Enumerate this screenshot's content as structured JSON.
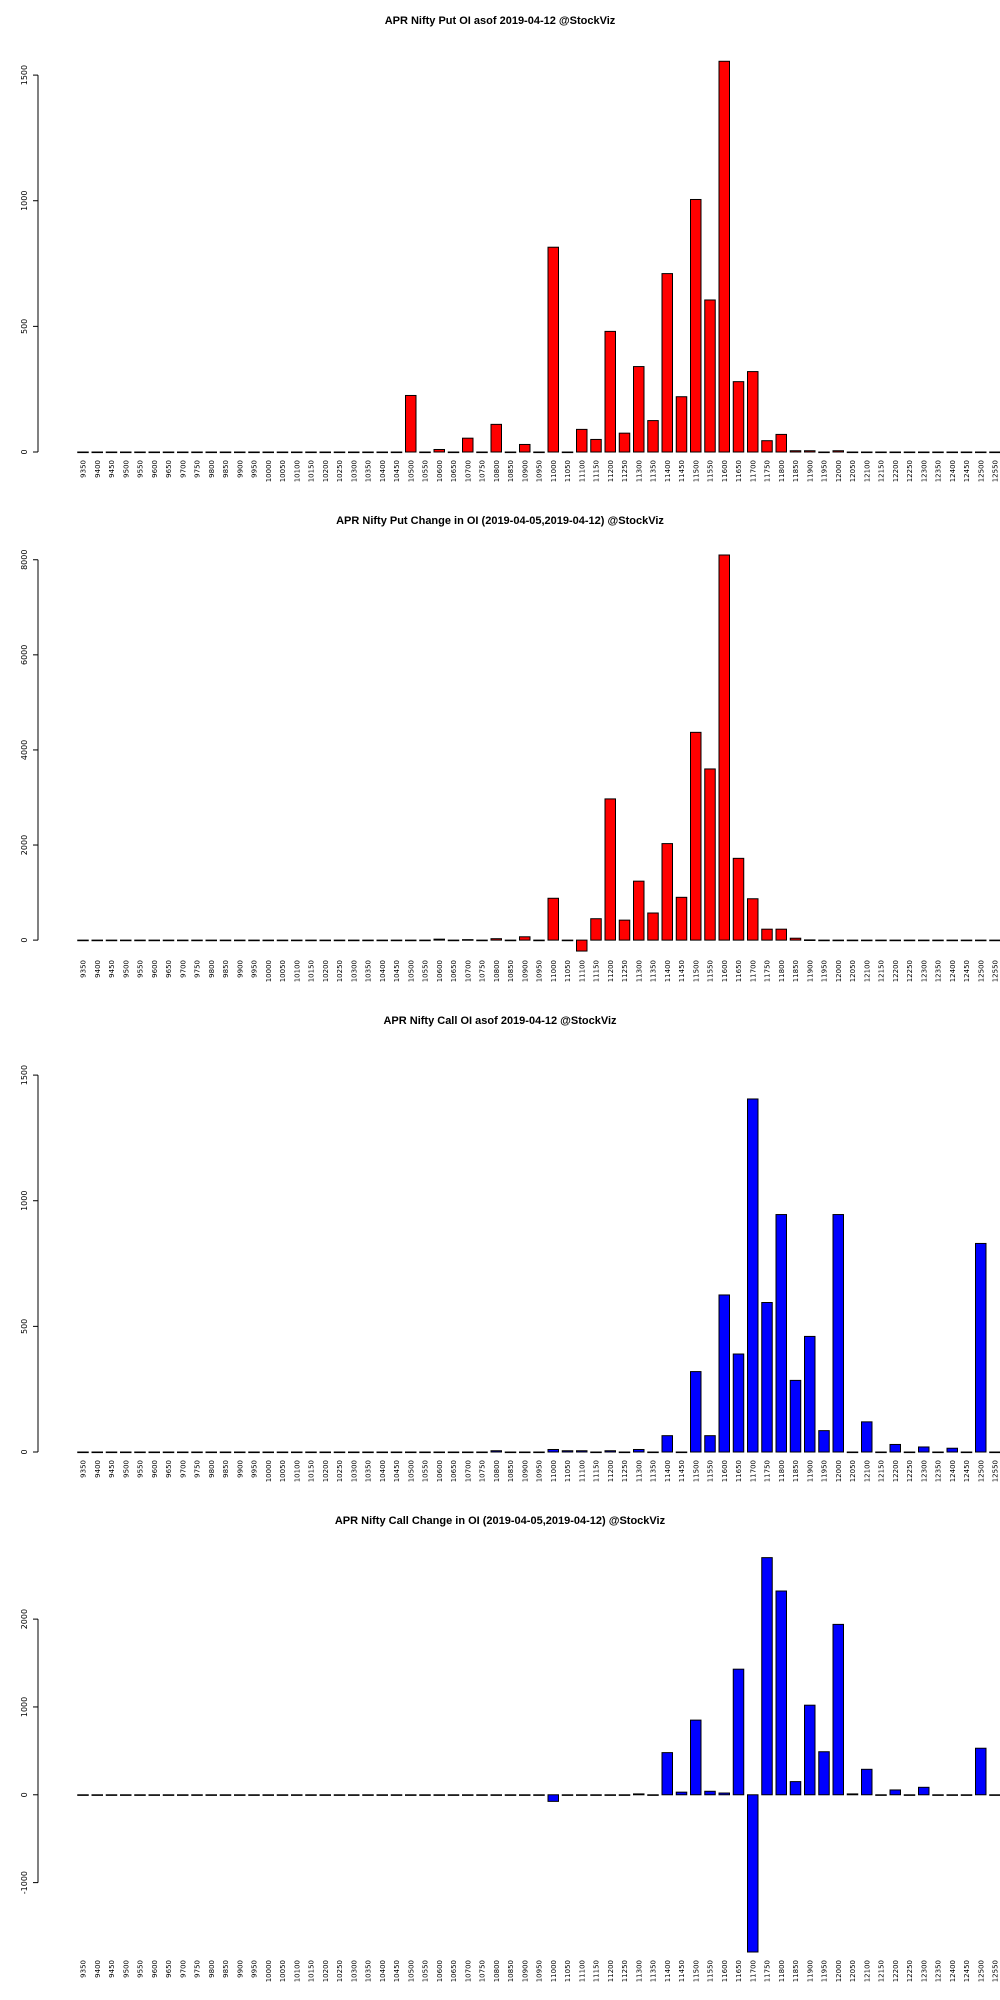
{
  "strikes": [
    "9350",
    "9400",
    "9450",
    "9500",
    "9550",
    "9600",
    "9650",
    "9700",
    "9750",
    "9800",
    "9850",
    "9900",
    "9950",
    "10000",
    "10050",
    "10100",
    "10150",
    "10200",
    "10250",
    "10300",
    "10350",
    "10400",
    "10450",
    "10500",
    "10550",
    "10600",
    "10650",
    "10700",
    "10750",
    "10800",
    "10850",
    "10900",
    "10950",
    "11000",
    "11050",
    "11100",
    "11150",
    "11200",
    "11250",
    "11300",
    "11350",
    "11400",
    "11450",
    "11500",
    "11550",
    "11600",
    "11650",
    "11700",
    "11750",
    "11800",
    "11850",
    "11900",
    "11950",
    "12000",
    "12050",
    "12100",
    "12150",
    "12200",
    "12250",
    "12300",
    "12350",
    "12400",
    "12450",
    "12500",
    "12550"
  ],
  "chart_data": [
    {
      "type": "bar",
      "title": "APR Nifty Put OI asof 2019-04-12 @StockViz",
      "color": "#ff0000",
      "ylim": [
        0,
        1580
      ],
      "yticks": [
        0,
        500,
        1000,
        1500
      ],
      "ytick_labels": [
        "0",
        "500",
        "1000",
        "1500"
      ],
      "values": [
        0,
        0,
        0,
        0,
        0,
        0,
        0,
        0,
        0,
        0,
        0,
        0,
        0,
        0,
        0,
        0,
        0,
        0,
        0,
        0,
        0,
        0,
        0,
        225,
        0,
        10,
        0,
        55,
        0,
        110,
        0,
        30,
        0,
        815,
        0,
        90,
        50,
        480,
        75,
        340,
        125,
        710,
        220,
        1005,
        605,
        1555,
        280,
        320,
        45,
        70,
        5,
        5,
        0,
        5,
        0,
        0,
        0,
        0,
        0,
        0,
        0,
        0,
        0,
        0,
        0
      ]
    },
    {
      "type": "bar",
      "title": "APR Nifty Put Change in OI (2019-04-05,2019-04-12) @StockViz",
      "color": "#ff0000",
      "ylim": [
        -250,
        8100
      ],
      "yticks": [
        0,
        2000,
        4000,
        6000,
        8000
      ],
      "ytick_labels": [
        "0",
        "2000",
        "4000",
        "6000",
        "8000"
      ],
      "values": [
        0,
        0,
        0,
        0,
        0,
        0,
        0,
        0,
        0,
        0,
        0,
        0,
        0,
        0,
        0,
        0,
        0,
        0,
        0,
        0,
        0,
        0,
        0,
        0,
        0,
        20,
        0,
        10,
        0,
        30,
        0,
        70,
        0,
        880,
        0,
        -230,
        450,
        2970,
        420,
        1240,
        570,
        2030,
        900,
        4370,
        3600,
        8100,
        1720,
        870,
        230,
        230,
        40,
        5,
        0,
        0,
        0,
        0,
        0,
        0,
        0,
        0,
        0,
        0,
        0,
        0,
        0
      ]
    },
    {
      "type": "bar",
      "title": "APR Nifty Call OI asof 2019-04-12 @StockViz",
      "color": "#0000ff",
      "ylim": [
        0,
        1580
      ],
      "yticks": [
        0,
        500,
        1000,
        1500
      ],
      "ytick_labels": [
        "0",
        "500",
        "1000",
        "1500"
      ],
      "values": [
        0,
        0,
        0,
        0,
        0,
        0,
        0,
        0,
        0,
        0,
        0,
        0,
        0,
        0,
        0,
        0,
        0,
        0,
        0,
        0,
        0,
        0,
        0,
        0,
        0,
        0,
        0,
        0,
        0,
        5,
        0,
        0,
        0,
        10,
        5,
        5,
        0,
        5,
        0,
        10,
        0,
        65,
        0,
        320,
        65,
        625,
        390,
        1405,
        595,
        945,
        285,
        460,
        85,
        945,
        0,
        120,
        0,
        30,
        0,
        20,
        0,
        15,
        0,
        830,
        0
      ]
    },
    {
      "type": "bar",
      "title": "APR Nifty Call Change in OI (2019-04-05,2019-04-12) @StockViz",
      "color": "#0000ff",
      "ylim": [
        -1790,
        2730
      ],
      "yticks": [
        -1000,
        0,
        1000,
        2000
      ],
      "ytick_labels": [
        "-1000",
        "0",
        "1000",
        "2000"
      ],
      "values": [
        0,
        0,
        0,
        0,
        0,
        0,
        0,
        0,
        0,
        0,
        0,
        0,
        0,
        0,
        0,
        0,
        0,
        0,
        0,
        0,
        0,
        0,
        0,
        0,
        0,
        0,
        0,
        0,
        0,
        0,
        0,
        0,
        0,
        -75,
        0,
        0,
        0,
        0,
        0,
        10,
        0,
        480,
        30,
        850,
        40,
        20,
        1430,
        -1790,
        2700,
        2320,
        150,
        1020,
        490,
        1940,
        10,
        290,
        0,
        55,
        0,
        85,
        0,
        0,
        0,
        530,
        0
      ]
    }
  ]
}
